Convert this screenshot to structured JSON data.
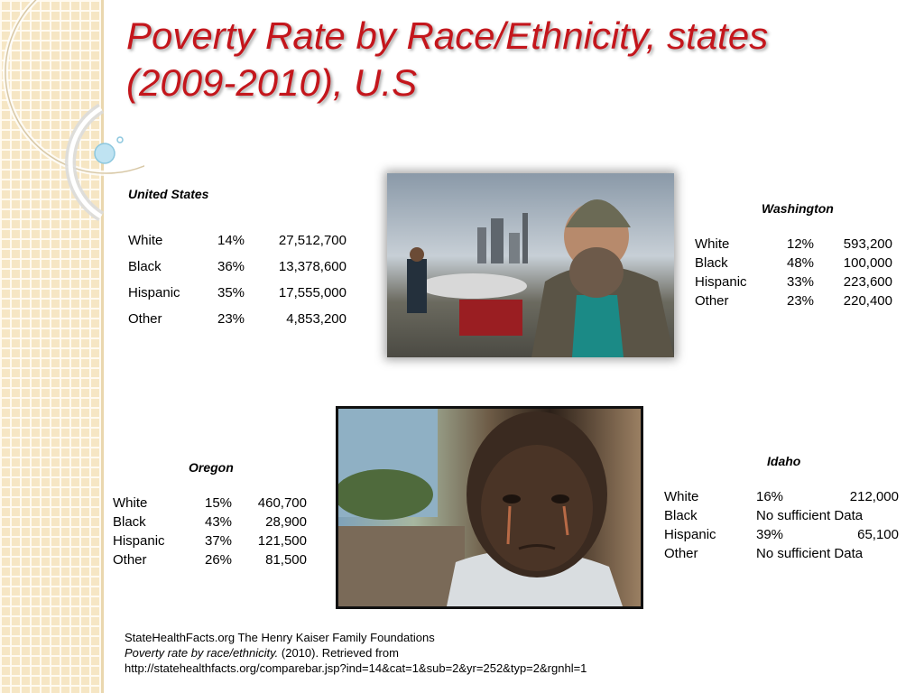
{
  "title": {
    "line1": "Poverty Rate by Race/Ethnicity, states",
    "line2": "(2009-2010), U.S"
  },
  "united_states": {
    "heading": "United States",
    "rows": [
      {
        "group": "White",
        "pct": "14%",
        "count": "27,512,700"
      },
      {
        "group": "Black",
        "pct": "36%",
        "count": "13,378,600"
      },
      {
        "group": "Hispanic",
        "pct": "35%",
        "count": "17,555,000"
      },
      {
        "group": "Other",
        "pct": "23%",
        "count": "4,853,200"
      }
    ]
  },
  "washington": {
    "heading": "Washington",
    "rows": [
      {
        "group": "White",
        "pct": "12%",
        "count": "593,200"
      },
      {
        "group": "Black",
        "pct": "48%",
        "count": "100,000"
      },
      {
        "group": "Hispanic",
        "pct": "33%",
        "count": "223,600"
      },
      {
        "group": "Other",
        "pct": "23%",
        "count": "220,400"
      }
    ]
  },
  "oregon": {
    "heading": "Oregon",
    "rows": [
      {
        "group": "White",
        "pct": "15%",
        "count": "460,700"
      },
      {
        "group": "Black",
        "pct": "43%",
        "count": "28,900"
      },
      {
        "group": "Hispanic",
        "pct": "37%",
        "count": "121,500"
      },
      {
        "group": "Other",
        "pct": "26%",
        "count": "81,500"
      }
    ]
  },
  "idaho": {
    "heading": "Idaho",
    "rows": [
      {
        "group": "White",
        "pct": "16%",
        "count": "212,000"
      },
      {
        "group": "Black",
        "pct": "No sufficient Data",
        "count": ""
      },
      {
        "group": "Hispanic",
        "pct": "39%",
        "count": "65,100"
      },
      {
        "group": "Other",
        "pct": "No sufficient Data",
        "count": ""
      }
    ]
  },
  "source": {
    "line1": "StateHealthFacts.org    The Henry Kaiser Family Foundations",
    "line2_italic": "Poverty rate by race/ethnicity.",
    "line2_rest": " (2010). Retrieved from",
    "line3": "http://statehealthfacts.org/comparebar.jsp?ind=14&cat=1&sub=2&yr=252&typ=2&rgnhl=1"
  },
  "colors": {
    "title": "#c4161c",
    "sidebar": "#f6e6c4"
  }
}
